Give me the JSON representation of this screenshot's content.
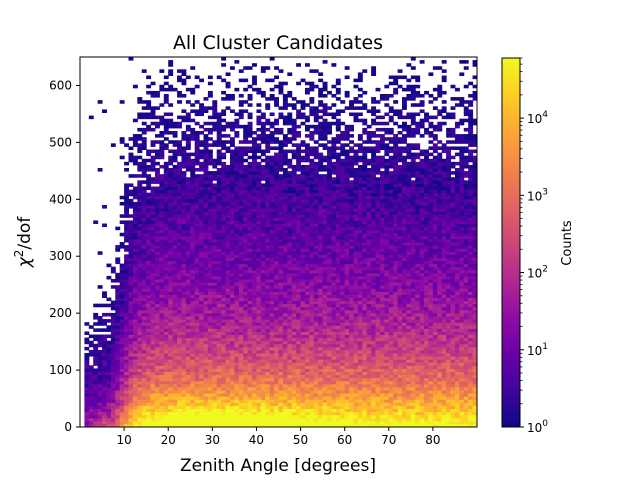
{
  "chart_data": {
    "type": "heatmap",
    "title": "All Cluster Candidates",
    "xlabel": "Zenith Angle [degrees]",
    "ylabel_base": "χ",
    "ylabel_sup": "2",
    "ylabel_rest": "/dof",
    "xlim": [
      0,
      90
    ],
    "ylim": [
      0,
      650
    ],
    "x_ticks": [
      10,
      20,
      30,
      40,
      50,
      60,
      70,
      80
    ],
    "y_ticks": [
      0,
      100,
      200,
      300,
      400,
      500,
      600
    ],
    "bins": {
      "x_bins": 90,
      "y_bins": 120
    },
    "colorbar": {
      "label": "Counts",
      "scale": "log",
      "colormap": "plasma",
      "range": [
        1,
        60000
      ],
      "ticks": [
        {
          "value": 1,
          "base": "10",
          "exp": "0"
        },
        {
          "value": 10,
          "base": "10",
          "exp": "1"
        },
        {
          "value": 100,
          "base": "10",
          "exp": "2"
        },
        {
          "value": 1000,
          "base": "10",
          "exp": "3"
        },
        {
          "value": 10000,
          "base": "10",
          "exp": "4"
        }
      ]
    },
    "grid": false,
    "description_profile": {
      "peak_zenith_deg": 32,
      "peak_chi2_dof": 5,
      "peak_counts": 60000,
      "support_start_deg": 1,
      "dense_region_max_chi2_dof": 200
    }
  }
}
